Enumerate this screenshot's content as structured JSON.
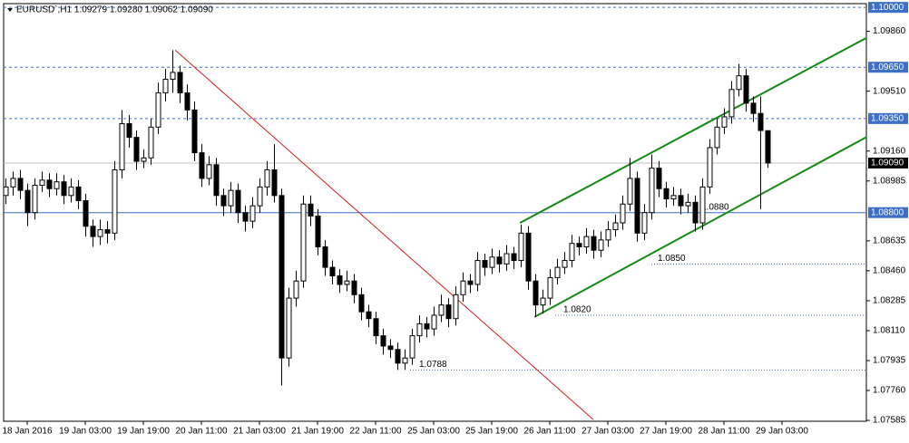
{
  "chart_data": {
    "type": "candlestick",
    "title": "EURUSD`,H1  1.09279 1.09280 1.09062 1.09090",
    "colors": {
      "up": "#ffffff",
      "down": "#000000",
      "outline": "#000000"
    },
    "xlim": [
      -0.25,
      118.625
    ],
    "ylim": [
      1.0758,
      1.10022
    ],
    "xticks": [
      {
        "value": 3,
        "label": "18 Jan 2016"
      },
      {
        "value": 11,
        "label": "19 Jan 03:00"
      },
      {
        "value": 19,
        "label": "19 Jan 19:00"
      },
      {
        "value": 27,
        "label": "20 Jan 11:00"
      },
      {
        "value": 35,
        "label": "21 Jan 03:00"
      },
      {
        "value": 43,
        "label": "21 Jan 19:00"
      },
      {
        "value": 51,
        "label": "22 Jan 11:00"
      },
      {
        "value": 59,
        "label": "25 Jan 03:00"
      },
      {
        "value": 67,
        "label": "25 Jan 19:00"
      },
      {
        "value": 75,
        "label": "26 Jan 11:00"
      },
      {
        "value": 83,
        "label": "27 Jan 03:00"
      },
      {
        "value": 91,
        "label": "27 Jan 19:00"
      },
      {
        "value": 99,
        "label": "28 Jan 11:00"
      },
      {
        "value": 107,
        "label": "29 Jan 03:00"
      }
    ],
    "yticks": [
      {
        "value": 1.0986,
        "label": "1.09860"
      },
      {
        "value": 1.0951,
        "label": "1.09510"
      },
      {
        "value": 1.0916,
        "label": "1.09160"
      },
      {
        "value": 1.08985,
        "label": "1.08985"
      },
      {
        "value": 1.08635,
        "label": "1.08635"
      },
      {
        "value": 1.0846,
        "label": "1.08460"
      },
      {
        "value": 1.08285,
        "label": "1.08285"
      },
      {
        "value": 1.0811,
        "label": "1.08110"
      },
      {
        "value": 1.07935,
        "label": "1.07935"
      },
      {
        "value": 1.0776,
        "label": "1.07760"
      },
      {
        "value": 1.07585,
        "label": "1.07585"
      }
    ],
    "levels": [
      {
        "value": 1.1,
        "label": "1.10000",
        "color": "#3d6fc6",
        "line_color": "#4a6ea8",
        "dash": true
      },
      {
        "value": 1.0965,
        "label": "1.09650",
        "color": "#3d6fc6",
        "line_color": "#4a6ea8",
        "dash": true
      },
      {
        "value": 1.0935,
        "label": "1.09350",
        "color": "#3d6fc6",
        "line_color": "#4a6ea8",
        "dash": true
      },
      {
        "value": 1.0909,
        "label": "1.09090",
        "color": "#000000",
        "line_color": "#c0c0c0",
        "dash": false
      },
      {
        "value": 1.088,
        "label": "1.08800",
        "color": "#3d6fc6",
        "line_color": "#3d6fc6",
        "dash": false
      }
    ],
    "marked_levels": [
      {
        "value": 1.088,
        "label": "1.0880"
      },
      {
        "value": 1.085,
        "label": "1.0850"
      },
      {
        "value": 1.082,
        "label": "1.0820"
      },
      {
        "value": 1.0788,
        "label": "1.0788"
      }
    ],
    "trendlines": [
      {
        "x": [
          23.4,
          81
        ],
        "y": [
          1.0975,
          1.0759
        ],
        "color": "#d42020"
      },
      {
        "x": [
          70.9,
          119
        ],
        "y": [
          1.0874,
          1.0983
        ],
        "color": "#138a13"
      },
      {
        "x": [
          72.9,
          119
        ],
        "y": [
          1.0819,
          1.0925
        ],
        "color": "#138a13"
      }
    ],
    "candles": [
      [
        1.089,
        1.09,
        1.0885,
        1.0895
      ],
      [
        1.0895,
        1.0904,
        1.089,
        1.09
      ],
      [
        1.09,
        1.0905,
        1.0888,
        1.0893
      ],
      [
        1.0893,
        1.0897,
        1.0872,
        1.088
      ],
      [
        1.088,
        1.09,
        1.0876,
        1.0896
      ],
      [
        1.0896,
        1.0904,
        1.0892,
        1.0899
      ],
      [
        1.0899,
        1.0903,
        1.0889,
        1.0894
      ],
      [
        1.0894,
        1.0903,
        1.089,
        1.0898
      ],
      [
        1.0898,
        1.0902,
        1.0885,
        1.089
      ],
      [
        1.089,
        1.09,
        1.0886,
        1.0895
      ],
      [
        1.0895,
        1.0899,
        1.0882,
        1.0887
      ],
      [
        1.0887,
        1.0891,
        1.0866,
        1.0872
      ],
      [
        1.0872,
        1.0876,
        1.086,
        1.0866
      ],
      [
        1.0866,
        1.0876,
        1.0861,
        1.087
      ],
      [
        1.087,
        1.0875,
        1.0862,
        1.0868
      ],
      [
        1.0868,
        1.091,
        1.0864,
        1.0905
      ],
      [
        1.0905,
        1.094,
        1.09,
        1.0932
      ],
      [
        1.0932,
        1.0937,
        1.0918,
        1.0924
      ],
      [
        1.0924,
        1.0928,
        1.0905,
        1.091
      ],
      [
        1.091,
        1.0917,
        1.0906,
        1.0912
      ],
      [
        1.0912,
        1.0935,
        1.0908,
        1.093
      ],
      [
        1.093,
        1.0956,
        1.0926,
        1.095
      ],
      [
        1.095,
        1.0964,
        1.0945,
        1.0958
      ],
      [
        1.0958,
        1.0975,
        1.095,
        1.0962
      ],
      [
        1.0962,
        1.0966,
        1.0944,
        1.095
      ],
      [
        1.095,
        1.0955,
        1.0934,
        1.094
      ],
      [
        1.094,
        1.0945,
        1.091,
        1.0915
      ],
      [
        1.0915,
        1.092,
        1.0895,
        1.09
      ],
      [
        1.09,
        1.0913,
        1.0896,
        1.0908
      ],
      [
        1.0908,
        1.0912,
        1.0884,
        1.089
      ],
      [
        1.089,
        1.0894,
        1.0878,
        1.0884
      ],
      [
        1.0884,
        1.0898,
        1.088,
        1.0893
      ],
      [
        1.0893,
        1.0897,
        1.0874,
        1.088
      ],
      [
        1.088,
        1.0884,
        1.0869,
        1.0875
      ],
      [
        1.0875,
        1.0889,
        1.0871,
        1.0884
      ],
      [
        1.0884,
        1.09,
        1.088,
        1.0895
      ],
      [
        1.0895,
        1.091,
        1.089,
        1.0905
      ],
      [
        1.0905,
        1.092,
        1.0886,
        1.089
      ],
      [
        1.089,
        1.0894,
        1.0779,
        1.0795
      ],
      [
        1.0795,
        1.0836,
        1.079,
        1.083
      ],
      [
        1.083,
        1.0846,
        1.0825,
        1.084
      ],
      [
        1.084,
        1.089,
        1.0836,
        1.0885
      ],
      [
        1.0885,
        1.089,
        1.0872,
        1.0878
      ],
      [
        1.0878,
        1.0882,
        1.0855,
        1.086
      ],
      [
        1.086,
        1.0864,
        1.0843,
        1.0848
      ],
      [
        1.0848,
        1.0852,
        1.0838,
        1.0843
      ],
      [
        1.0843,
        1.0847,
        1.0833,
        1.0838
      ],
      [
        1.0838,
        1.0846,
        1.0834,
        1.084
      ],
      [
        1.084,
        1.0844,
        1.0827,
        1.0832
      ],
      [
        1.0832,
        1.0836,
        1.0817,
        1.0822
      ],
      [
        1.0822,
        1.0826,
        1.0813,
        1.0818
      ],
      [
        1.0818,
        1.0822,
        1.0803,
        1.0808
      ],
      [
        1.0808,
        1.0812,
        1.0797,
        1.0802
      ],
      [
        1.0802,
        1.0806,
        1.0795,
        1.08
      ],
      [
        1.08,
        1.0804,
        1.0788,
        1.0792
      ],
      [
        1.0792,
        1.08,
        1.0788,
        1.0795
      ],
      [
        1.0795,
        1.0812,
        1.0791,
        1.0808
      ],
      [
        1.0808,
        1.082,
        1.0804,
        1.0815
      ],
      [
        1.0815,
        1.0819,
        1.0807,
        1.0812
      ],
      [
        1.0812,
        1.0825,
        1.0808,
        1.082
      ],
      [
        1.082,
        1.0832,
        1.0816,
        1.0826
      ],
      [
        1.0826,
        1.083,
        1.0813,
        1.0818
      ],
      [
        1.0818,
        1.0837,
        1.0814,
        1.0832
      ],
      [
        1.0832,
        1.0845,
        1.0828,
        1.084
      ],
      [
        1.084,
        1.0844,
        1.0833,
        1.0838
      ],
      [
        1.0838,
        1.0857,
        1.0834,
        1.0852
      ],
      [
        1.0852,
        1.0856,
        1.0843,
        1.0848
      ],
      [
        1.0848,
        1.0859,
        1.0844,
        1.0854
      ],
      [
        1.0854,
        1.0858,
        1.0845,
        1.085
      ],
      [
        1.085,
        1.0861,
        1.0846,
        1.0856
      ],
      [
        1.0856,
        1.086,
        1.0847,
        1.0852
      ],
      [
        1.0852,
        1.0873,
        1.0848,
        1.0868
      ],
      [
        1.0868,
        1.0872,
        1.0835,
        1.084
      ],
      [
        1.084,
        1.0844,
        1.0819,
        1.0826
      ],
      [
        1.0826,
        1.0835,
        1.0821,
        1.083
      ],
      [
        1.083,
        1.0847,
        1.0826,
        1.0842
      ],
      [
        1.0842,
        1.0853,
        1.0838,
        1.0848
      ],
      [
        1.0848,
        1.0857,
        1.0844,
        1.0852
      ],
      [
        1.0852,
        1.0867,
        1.0848,
        1.0862
      ],
      [
        1.0862,
        1.0866,
        1.0855,
        1.086
      ],
      [
        1.086,
        1.0871,
        1.0856,
        1.0866
      ],
      [
        1.0866,
        1.087,
        1.0853,
        1.0858
      ],
      [
        1.0858,
        1.0869,
        1.0854,
        1.0864
      ],
      [
        1.0864,
        1.0875,
        1.086,
        1.087
      ],
      [
        1.087,
        1.0879,
        1.0866,
        1.0874
      ],
      [
        1.0874,
        1.089,
        1.087,
        1.0885
      ],
      [
        1.0885,
        1.0912,
        1.0881,
        1.09
      ],
      [
        1.09,
        1.0904,
        1.0863,
        1.0868
      ],
      [
        1.0868,
        1.0885,
        1.0864,
        1.088
      ],
      [
        1.088,
        1.0914,
        1.0876,
        1.0906
      ],
      [
        1.0906,
        1.091,
        1.0889,
        1.0894
      ],
      [
        1.0894,
        1.0898,
        1.0883,
        1.0888
      ],
      [
        1.0888,
        1.0895,
        1.0884,
        1.089
      ],
      [
        1.089,
        1.0894,
        1.0879,
        1.0884
      ],
      [
        1.0884,
        1.0891,
        1.088,
        1.0886
      ],
      [
        1.0886,
        1.089,
        1.0869,
        1.0874
      ],
      [
        1.0874,
        1.09,
        1.087,
        1.0895
      ],
      [
        1.0895,
        1.0923,
        1.0891,
        1.0918
      ],
      [
        1.0918,
        1.0935,
        1.0914,
        1.093
      ],
      [
        1.093,
        1.0941,
        1.0926,
        1.0936
      ],
      [
        1.0936,
        1.0957,
        1.0932,
        1.0952
      ],
      [
        1.0952,
        1.0967,
        1.0948,
        1.096
      ],
      [
        1.096,
        1.0964,
        1.0939,
        1.0944
      ],
      [
        1.0944,
        1.0948,
        1.0933,
        1.0938
      ],
      [
        1.0938,
        1.0948,
        1.0882,
        1.0928
      ],
      [
        1.09279,
        1.0928,
        1.09062,
        1.0909
      ]
    ]
  }
}
